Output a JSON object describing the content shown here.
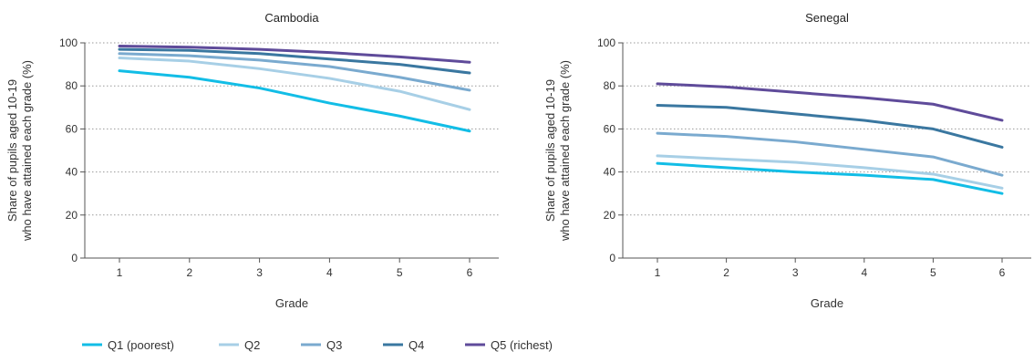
{
  "chart_data": [
    {
      "type": "line",
      "title": "Cambodia",
      "xlabel": "Grade",
      "ylabel": [
        "Share of pupils aged 10-19",
        "who have attained each grade (%)"
      ],
      "x": [
        1,
        2,
        3,
        4,
        5,
        6
      ],
      "ylim": [
        0,
        100
      ],
      "yticks": [
        0,
        20,
        40,
        60,
        80,
        100
      ],
      "grid": "horizontal-dotted",
      "series": [
        {
          "name": "Q1 (poorest)",
          "values": [
            87,
            84,
            79,
            72,
            66,
            59
          ]
        },
        {
          "name": "Q2",
          "values": [
            93,
            91.5,
            88,
            83.5,
            77.5,
            69
          ]
        },
        {
          "name": "Q3",
          "values": [
            95,
            94,
            92,
            89,
            84,
            78
          ]
        },
        {
          "name": "Q4",
          "values": [
            97,
            96.5,
            95,
            92.5,
            90,
            86
          ]
        },
        {
          "name": "Q5 (richest)",
          "values": [
            98.5,
            98,
            97,
            95.5,
            93.5,
            91
          ]
        }
      ]
    },
    {
      "type": "line",
      "title": "Senegal",
      "xlabel": "Grade",
      "ylabel": [
        "Share of pupils aged 10-19",
        "who have attained each grade (%)"
      ],
      "x": [
        1,
        2,
        3,
        4,
        5,
        6
      ],
      "ylim": [
        0,
        100
      ],
      "yticks": [
        0,
        20,
        40,
        60,
        80,
        100
      ],
      "grid": "horizontal-dotted",
      "series": [
        {
          "name": "Q1 (poorest)",
          "values": [
            44,
            42,
            40,
            38.5,
            36.5,
            30
          ]
        },
        {
          "name": "Q2",
          "values": [
            47.5,
            46,
            44.5,
            42,
            39,
            32.5
          ]
        },
        {
          "name": "Q3",
          "values": [
            58,
            56.5,
            54,
            50.5,
            47,
            38.5
          ]
        },
        {
          "name": "Q4",
          "values": [
            71,
            70,
            67,
            64,
            60,
            51.5
          ]
        },
        {
          "name": "Q5 (richest)",
          "values": [
            81,
            79.5,
            77,
            74.5,
            71.5,
            64
          ]
        }
      ]
    }
  ],
  "legend": {
    "position": "bottom-left",
    "items": [
      {
        "label": "Q1 (poorest)",
        "color": "#12bde6"
      },
      {
        "label": "Q2",
        "color": "#a7cfe6"
      },
      {
        "label": "Q3",
        "color": "#7aaacf"
      },
      {
        "label": "Q4",
        "color": "#3a77a0"
      },
      {
        "label": "Q5 (richest)",
        "color": "#5f4b9a"
      }
    ]
  }
}
